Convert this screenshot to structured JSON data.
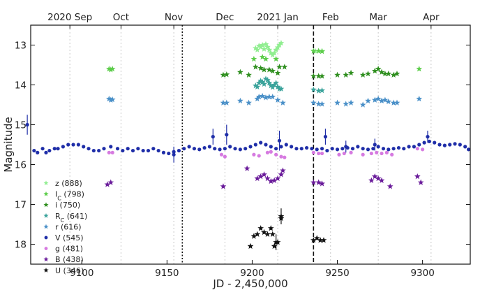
{
  "chart_data": {
    "type": "scatter",
    "xlabel": "JD - 2,450,000",
    "ylabel": "Magnitude",
    "xlim": [
      9070,
      9328
    ],
    "ylim": [
      18.5,
      12.5
    ],
    "x_ticks": [
      9100,
      9150,
      9200,
      9250,
      9300
    ],
    "y_ticks": [
      13,
      14,
      15,
      16,
      17,
      18
    ],
    "top_axis": [
      {
        "label": "2020 Sep",
        "x": 9093
      },
      {
        "label": "Oct",
        "x": 9123
      },
      {
        "label": "Nov",
        "x": 9154
      },
      {
        "label": "Dec",
        "x": 9184
      },
      {
        "label": "2021 Jan",
        "x": 9215
      },
      {
        "label": "Feb",
        "x": 9246
      },
      {
        "label": "Mar",
        "x": 9274
      },
      {
        "label": "Apr",
        "x": 9305
      }
    ],
    "month_lines": [
      9093,
      9123,
      9154,
      9184,
      9215,
      9246,
      9274,
      9305
    ],
    "vlines": [
      {
        "x": 9159,
        "style": "dotted"
      },
      {
        "x": 9236,
        "style": "dashed"
      }
    ],
    "legend_position": "lower-left",
    "series": [
      {
        "name": "z (888)",
        "color": "#90ee90",
        "marker": "star",
        "points": [
          [
            9202,
            13.08
          ],
          [
            9203,
            13.12
          ],
          [
            9204,
            13.02
          ],
          [
            9205,
            13.05
          ],
          [
            9206,
            13.0
          ],
          [
            9207,
            13.1
          ],
          [
            9208,
            12.98
          ],
          [
            9209,
            13.05
          ],
          [
            9210,
            13.12
          ],
          [
            9211,
            13.2
          ],
          [
            9212,
            13.25
          ],
          [
            9213,
            13.2
          ],
          [
            9214,
            13.12
          ],
          [
            9215,
            13.06
          ],
          [
            9216,
            13.0
          ],
          [
            9217,
            12.95
          ],
          [
            9237,
            13.15
          ],
          [
            9239,
            13.15
          ],
          [
            9241,
            13.15
          ]
        ]
      },
      {
        "name": "I_C (798)",
        "color": "#5ccd4a",
        "marker": "star",
        "points": [
          [
            9116,
            13.6
          ],
          [
            9117,
            13.62
          ],
          [
            9118,
            13.6
          ],
          [
            9201,
            13.35
          ],
          [
            9206,
            13.3
          ],
          [
            9208,
            13.35
          ],
          [
            9214,
            13.35
          ],
          [
            9236,
            13.15
          ],
          [
            9239,
            13.15
          ],
          [
            9241,
            13.16
          ],
          [
            9274,
            13.6
          ],
          [
            9298,
            13.6
          ]
        ]
      },
      {
        "name": "i (750)",
        "color": "#2f8f1f",
        "marker": "star",
        "points": [
          [
            9183,
            13.75
          ],
          [
            9185,
            13.74
          ],
          [
            9193,
            13.68
          ],
          [
            9198,
            13.75
          ],
          [
            9202,
            13.55
          ],
          [
            9205,
            13.58
          ],
          [
            9207,
            13.62
          ],
          [
            9210,
            13.62
          ],
          [
            9212,
            13.65
          ],
          [
            9215,
            13.7
          ],
          [
            9216,
            13.55
          ],
          [
            9219,
            13.55
          ],
          [
            9236,
            13.78
          ],
          [
            9239,
            13.78
          ],
          [
            9241,
            13.78
          ],
          [
            9250,
            13.75
          ],
          [
            9255,
            13.75
          ],
          [
            9258,
            13.7
          ],
          [
            9265,
            13.75
          ],
          [
            9268,
            13.72
          ],
          [
            9272,
            13.65
          ],
          [
            9274,
            13.6
          ],
          [
            9276,
            13.68
          ],
          [
            9278,
            13.72
          ],
          [
            9280,
            13.72
          ],
          [
            9283,
            13.75
          ],
          [
            9285,
            13.72
          ]
        ]
      },
      {
        "name": "R_C (641)",
        "color": "#3aa39b",
        "marker": "star",
        "points": [
          [
            9202,
            14.02
          ],
          [
            9203,
            14.05
          ],
          [
            9204,
            13.95
          ],
          [
            9205,
            13.9
          ],
          [
            9206,
            13.93
          ],
          [
            9207,
            13.98
          ],
          [
            9208,
            13.85
          ],
          [
            9209,
            13.88
          ],
          [
            9210,
            13.95
          ],
          [
            9211,
            14.02
          ],
          [
            9212,
            14.06
          ],
          [
            9213,
            14.0
          ],
          [
            9214,
            13.95
          ],
          [
            9215,
            14.05
          ],
          [
            9216,
            14.1
          ],
          [
            9217,
            14.1
          ],
          [
            9236,
            14.12
          ],
          [
            9239,
            14.15
          ],
          [
            9241,
            14.14
          ]
        ]
      },
      {
        "name": "r (616)",
        "color": "#4a90c8",
        "marker": "star",
        "points": [
          [
            9116,
            14.35
          ],
          [
            9117,
            14.38
          ],
          [
            9118,
            14.37
          ],
          [
            9183,
            14.45
          ],
          [
            9185,
            14.45
          ],
          [
            9193,
            14.4
          ],
          [
            9198,
            14.45
          ],
          [
            9203,
            14.35
          ],
          [
            9204,
            14.3
          ],
          [
            9206,
            14.28
          ],
          [
            9208,
            14.32
          ],
          [
            9210,
            14.3
          ],
          [
            9212,
            14.3
          ],
          [
            9215,
            14.38
          ],
          [
            9218,
            14.45
          ],
          [
            9236,
            14.45
          ],
          [
            9239,
            14.48
          ],
          [
            9241,
            14.48
          ],
          [
            9250,
            14.45
          ],
          [
            9255,
            14.48
          ],
          [
            9258,
            14.45
          ],
          [
            9265,
            14.5
          ],
          [
            9268,
            14.4
          ],
          [
            9272,
            14.38
          ],
          [
            9274,
            14.35
          ],
          [
            9276,
            14.4
          ],
          [
            9278,
            14.38
          ],
          [
            9280,
            14.42
          ],
          [
            9283,
            14.45
          ],
          [
            9285,
            14.45
          ],
          [
            9298,
            14.35
          ]
        ]
      },
      {
        "name": "V (545)",
        "color": "#1f2ea8",
        "marker": "circle",
        "points": [
          [
            9072,
            15.65
          ],
          [
            9074,
            15.7
          ],
          [
            9077,
            15.6
          ],
          [
            9079,
            15.7
          ],
          [
            9081,
            15.65
          ],
          [
            9084,
            15.6
          ],
          [
            9086,
            15.6
          ],
          [
            9089,
            15.55
          ],
          [
            9092,
            15.5
          ],
          [
            9095,
            15.5
          ],
          [
            9098,
            15.5
          ],
          [
            9101,
            15.55
          ],
          [
            9104,
            15.6
          ],
          [
            9107,
            15.65
          ],
          [
            9110,
            15.65
          ],
          [
            9113,
            15.6
          ],
          [
            9117,
            15.55
          ],
          [
            9121,
            15.6
          ],
          [
            9124,
            15.65
          ],
          [
            9127,
            15.6
          ],
          [
            9130,
            15.65
          ],
          [
            9133,
            15.6
          ],
          [
            9136,
            15.65
          ],
          [
            9139,
            15.65
          ],
          [
            9142,
            15.6
          ],
          [
            9145,
            15.65
          ],
          [
            9148,
            15.7
          ],
          [
            9151,
            15.72
          ],
          [
            9154,
            15.68
          ],
          [
            9157,
            15.65
          ],
          [
            9160,
            15.6
          ],
          [
            9163,
            15.55
          ],
          [
            9166,
            15.6
          ],
          [
            9169,
            15.62
          ],
          [
            9172,
            15.58
          ],
          [
            9175,
            15.55
          ],
          [
            9178,
            15.6
          ],
          [
            9181,
            15.62
          ],
          [
            9184,
            15.6
          ],
          [
            9187,
            15.55
          ],
          [
            9190,
            15.6
          ],
          [
            9193,
            15.62
          ],
          [
            9196,
            15.6
          ],
          [
            9199,
            15.55
          ],
          [
            9202,
            15.5
          ],
          [
            9205,
            15.45
          ],
          [
            9208,
            15.5
          ],
          [
            9211,
            15.55
          ],
          [
            9214,
            15.6
          ],
          [
            9217,
            15.55
          ],
          [
            9220,
            15.5
          ],
          [
            9223,
            15.55
          ],
          [
            9226,
            15.6
          ],
          [
            9229,
            15.6
          ],
          [
            9232,
            15.58
          ],
          [
            9235,
            15.6
          ],
          [
            9238,
            15.62
          ],
          [
            9241,
            15.6
          ],
          [
            9244,
            15.65
          ],
          [
            9247,
            15.6
          ],
          [
            9250,
            15.62
          ],
          [
            9253,
            15.6
          ],
          [
            9256,
            15.58
          ],
          [
            9259,
            15.6
          ],
          [
            9262,
            15.55
          ],
          [
            9265,
            15.6
          ],
          [
            9268,
            15.62
          ],
          [
            9271,
            15.6
          ],
          [
            9274,
            15.55
          ],
          [
            9277,
            15.6
          ],
          [
            9280,
            15.62
          ],
          [
            9283,
            15.6
          ],
          [
            9286,
            15.58
          ],
          [
            9289,
            15.6
          ],
          [
            9292,
            15.55
          ],
          [
            9295,
            15.55
          ],
          [
            9298,
            15.5
          ],
          [
            9301,
            15.45
          ],
          [
            9304,
            15.42
          ],
          [
            9307,
            15.45
          ],
          [
            9310,
            15.5
          ],
          [
            9313,
            15.52
          ],
          [
            9316,
            15.5
          ],
          [
            9319,
            15.48
          ],
          [
            9322,
            15.5
          ],
          [
            9325,
            15.55
          ],
          [
            9327,
            15.62
          ]
        ],
        "error_bars": [
          [
            9068,
            15.0,
            0.25
          ],
          [
            9154,
            15.75,
            0.2
          ],
          [
            9177,
            15.3,
            0.2
          ],
          [
            9185,
            15.25,
            0.25
          ],
          [
            9216,
            15.4,
            0.25
          ],
          [
            9243,
            15.3,
            0.2
          ],
          [
            9255,
            15.55,
            0.15
          ],
          [
            9272,
            15.5,
            0.15
          ],
          [
            9303,
            15.3,
            0.15
          ]
        ]
      },
      {
        "name": "g (481)",
        "color": "#d67ae0",
        "marker": "circle",
        "points": [
          [
            9116,
            15.7
          ],
          [
            9118,
            15.7
          ],
          [
            9182,
            15.75
          ],
          [
            9184,
            15.8
          ],
          [
            9201,
            15.75
          ],
          [
            9204,
            15.78
          ],
          [
            9209,
            15.7
          ],
          [
            9211,
            15.68
          ],
          [
            9214,
            15.75
          ],
          [
            9217,
            15.8
          ],
          [
            9219,
            15.82
          ],
          [
            9236,
            15.7
          ],
          [
            9239,
            15.72
          ],
          [
            9241,
            15.72
          ],
          [
            9251,
            15.75
          ],
          [
            9254,
            15.72
          ],
          [
            9258,
            15.7
          ],
          [
            9265,
            15.75
          ],
          [
            9270,
            15.72
          ],
          [
            9273,
            15.7
          ],
          [
            9276,
            15.72
          ],
          [
            9279,
            15.7
          ],
          [
            9282,
            15.75
          ],
          [
            9297,
            15.6
          ],
          [
            9300,
            15.62
          ]
        ]
      },
      {
        "name": "B (438)",
        "color": "#6a1b9a",
        "marker": "star",
        "points": [
          [
            9115,
            16.5
          ],
          [
            9117,
            16.45
          ],
          [
            9183,
            16.55
          ],
          [
            9197,
            16.1
          ],
          [
            9203,
            16.35
          ],
          [
            9205,
            16.3
          ],
          [
            9207,
            16.25
          ],
          [
            9209,
            16.35
          ],
          [
            9211,
            16.42
          ],
          [
            9213,
            16.4
          ],
          [
            9215,
            16.35
          ],
          [
            9217,
            16.25
          ],
          [
            9218,
            16.15
          ],
          [
            9236,
            16.45
          ],
          [
            9239,
            16.45
          ],
          [
            9241,
            16.48
          ],
          [
            9270,
            16.4
          ],
          [
            9272,
            16.3
          ],
          [
            9274,
            16.35
          ],
          [
            9276,
            16.4
          ],
          [
            9281,
            16.55
          ],
          [
            9297,
            16.3
          ],
          [
            9299,
            16.45
          ]
        ]
      },
      {
        "name": "U (346)",
        "color": "#111111",
        "marker": "star",
        "points": [
          [
            9199,
            18.05
          ],
          [
            9201,
            17.8
          ],
          [
            9203,
            17.75
          ],
          [
            9205,
            17.6
          ],
          [
            9207,
            17.7
          ],
          [
            9209,
            17.75
          ],
          [
            9211,
            17.6
          ],
          [
            9212,
            17.75
          ],
          [
            9213,
            18.05
          ],
          [
            9215,
            17.95
          ],
          [
            9217,
            17.35
          ],
          [
            9236,
            17.9
          ],
          [
            9238,
            17.85
          ],
          [
            9240,
            17.9
          ],
          [
            9242,
            17.9
          ]
        ],
        "error_bars": [
          [
            9217,
            17.3,
            0.2
          ],
          [
            9214,
            17.95,
            0.2
          ]
        ]
      }
    ]
  }
}
